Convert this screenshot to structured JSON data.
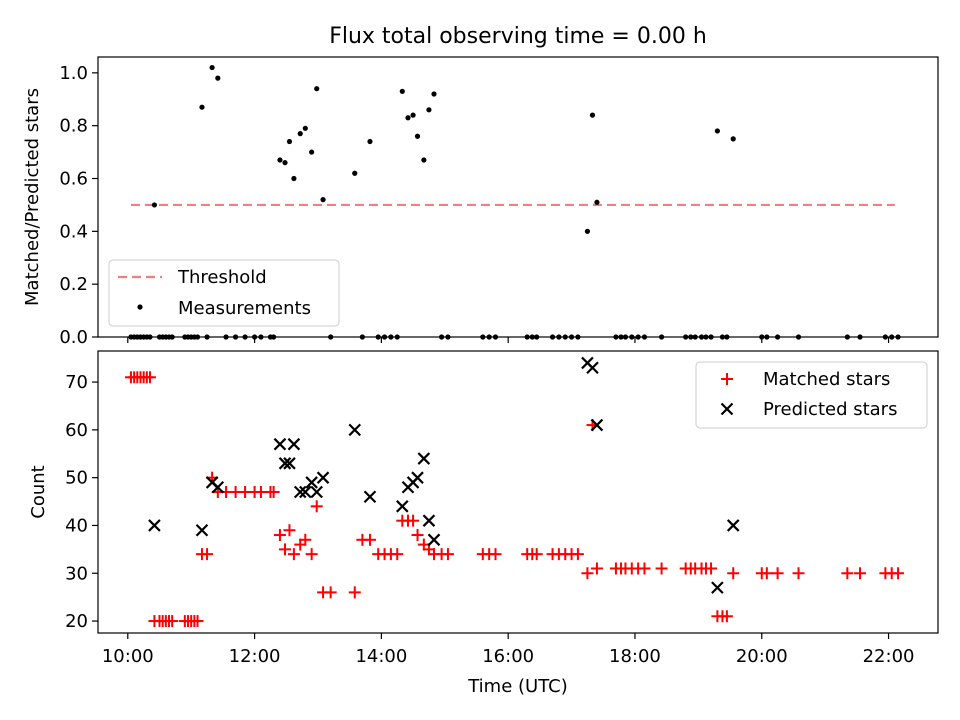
{
  "chart_data": [
    {
      "type": "scatter",
      "title": "Flux total observing time = 0.00 h",
      "xlabel": "",
      "ylabel": "Matched/Predicted stars",
      "xlim": [
        9.53,
        22.78
      ],
      "ylim": [
        0.0,
        1.06
      ],
      "yticks": [
        0.0,
        0.2,
        0.4,
        0.6,
        0.8,
        1.0
      ],
      "yticklabels": [
        "0.0",
        "0.2",
        "0.4",
        "0.6",
        "0.8",
        "1.0"
      ],
      "legend_position": "lower-left",
      "threshold": {
        "name": "Threshold",
        "y": 0.5,
        "x": [
          10.05,
          22.1
        ],
        "color": "#f08080",
        "style": "dashed"
      },
      "series": [
        {
          "name": "Measurements",
          "color": "#000000",
          "marker": "dot",
          "x": [
            10.05,
            10.1,
            10.15,
            10.2,
            10.25,
            10.3,
            10.35,
            10.42,
            10.5,
            10.55,
            10.6,
            10.65,
            10.7,
            10.9,
            10.95,
            11.0,
            11.05,
            11.1,
            11.17,
            11.25,
            11.33,
            11.42,
            11.55,
            11.7,
            11.85,
            12.0,
            12.1,
            12.25,
            12.3,
            12.4,
            12.48,
            12.55,
            12.62,
            12.72,
            12.8,
            12.9,
            12.98,
            13.08,
            13.2,
            13.58,
            13.7,
            13.82,
            13.95,
            14.05,
            14.15,
            14.25,
            14.33,
            14.42,
            14.5,
            14.57,
            14.67,
            14.75,
            14.83,
            14.95,
            15.05,
            15.6,
            15.7,
            15.8,
            16.3,
            16.38,
            16.45,
            16.7,
            16.8,
            16.9,
            17.0,
            17.1,
            17.25,
            17.33,
            17.4,
            17.7,
            17.78,
            17.85,
            17.95,
            18.05,
            18.15,
            18.42,
            18.8,
            18.88,
            18.95,
            19.05,
            19.12,
            19.2,
            19.3,
            19.38,
            19.45,
            19.55,
            20.0,
            20.08,
            20.25,
            20.58,
            21.35,
            21.55,
            21.95,
            22.05,
            22.15
          ],
          "y": [
            0,
            0,
            0,
            0,
            0,
            0,
            0,
            0.5,
            0,
            0,
            0,
            0,
            0,
            0,
            0,
            0,
            0,
            0,
            0.87,
            0,
            1.02,
            0.98,
            0,
            0,
            0,
            0,
            0,
            0,
            0,
            0.67,
            0.66,
            0.74,
            0.6,
            0.77,
            0.79,
            0.7,
            0.94,
            0.52,
            0,
            0.62,
            0,
            0.74,
            0,
            0,
            0,
            0,
            0.93,
            0.83,
            0.84,
            0.76,
            0.67,
            0.86,
            0.92,
            0,
            0,
            0,
            0,
            0,
            0,
            0,
            0,
            0,
            0,
            0,
            0,
            0,
            0.4,
            0.84,
            0.51,
            0,
            0,
            0,
            0,
            0,
            0,
            0,
            0,
            0,
            0,
            0,
            0,
            0,
            0.78,
            0,
            0,
            0.75,
            0,
            0,
            0,
            0,
            0,
            0,
            0,
            0,
            0
          ]
        }
      ]
    },
    {
      "type": "scatter",
      "title": "",
      "xlabel": "Time (UTC)",
      "ylabel": "Count",
      "xlim": [
        9.53,
        22.78
      ],
      "ylim": [
        17.5,
        76.5
      ],
      "xticks": [
        10,
        12,
        14,
        16,
        18,
        20,
        22
      ],
      "xticklabels": [
        "10:00",
        "12:00",
        "14:00",
        "16:00",
        "18:00",
        "20:00",
        "22:00"
      ],
      "yticks": [
        20,
        30,
        40,
        50,
        60,
        70
      ],
      "yticklabels": [
        "20",
        "30",
        "40",
        "50",
        "60",
        "70"
      ],
      "legend_position": "upper-right",
      "series": [
        {
          "name": "Matched stars",
          "color": "#ff0000",
          "marker": "plus",
          "x": [
            10.05,
            10.1,
            10.15,
            10.2,
            10.25,
            10.3,
            10.35,
            10.42,
            10.5,
            10.55,
            10.6,
            10.65,
            10.7,
            10.9,
            10.95,
            11.0,
            11.05,
            11.1,
            11.17,
            11.25,
            11.33,
            11.42,
            11.55,
            11.7,
            11.85,
            12.0,
            12.1,
            12.25,
            12.3,
            12.4,
            12.48,
            12.55,
            12.62,
            12.72,
            12.8,
            12.9,
            12.98,
            13.08,
            13.2,
            13.58,
            13.7,
            13.82,
            13.95,
            14.05,
            14.15,
            14.25,
            14.33,
            14.42,
            14.5,
            14.57,
            14.67,
            14.75,
            14.83,
            14.95,
            15.05,
            15.6,
            15.7,
            15.8,
            16.3,
            16.38,
            16.45,
            16.7,
            16.8,
            16.9,
            17.0,
            17.1,
            17.25,
            17.33,
            17.4,
            17.7,
            17.78,
            17.85,
            17.95,
            18.05,
            18.15,
            18.42,
            18.8,
            18.88,
            18.95,
            19.05,
            19.12,
            19.2,
            19.3,
            19.38,
            19.45,
            19.55,
            20.0,
            20.08,
            20.25,
            20.58,
            21.35,
            21.55,
            21.95,
            22.05,
            22.15
          ],
          "y": [
            71,
            71,
            71,
            71,
            71,
            71,
            71,
            20,
            20,
            20,
            20,
            20,
            20,
            20,
            20,
            20,
            20,
            20,
            34,
            34,
            50,
            47,
            47,
            47,
            47,
            47,
            47,
            47,
            47,
            38,
            35,
            39,
            34,
            36,
            37,
            34,
            44,
            26,
            26,
            26,
            37,
            37,
            34,
            34,
            34,
            34,
            41,
            41,
            41,
            38,
            36,
            35,
            34,
            34,
            34,
            34,
            34,
            34,
            34,
            34,
            34,
            34,
            34,
            34,
            34,
            34,
            30,
            61,
            31,
            31,
            31,
            31,
            31,
            31,
            31,
            31,
            31,
            31,
            31,
            31,
            31,
            31,
            21,
            21,
            21,
            30,
            30,
            30,
            30,
            30,
            30,
            30,
            30,
            30,
            30
          ]
        },
        {
          "name": "Predicted stars",
          "color": "#000000",
          "marker": "x",
          "x": [
            10.42,
            11.17,
            11.33,
            11.42,
            12.4,
            12.48,
            12.55,
            12.62,
            12.72,
            12.8,
            12.9,
            12.98,
            13.08,
            13.58,
            13.82,
            14.33,
            14.42,
            14.5,
            14.57,
            14.67,
            14.75,
            14.83,
            17.25,
            17.33,
            17.4,
            19.3,
            19.55
          ],
          "y": [
            40,
            39,
            49,
            48,
            57,
            53,
            53,
            57,
            47,
            47,
            49,
            47,
            50,
            60,
            46,
            44,
            48,
            49,
            50,
            54,
            41,
            37,
            74,
            73,
            61,
            27,
            40
          ]
        }
      ]
    }
  ]
}
